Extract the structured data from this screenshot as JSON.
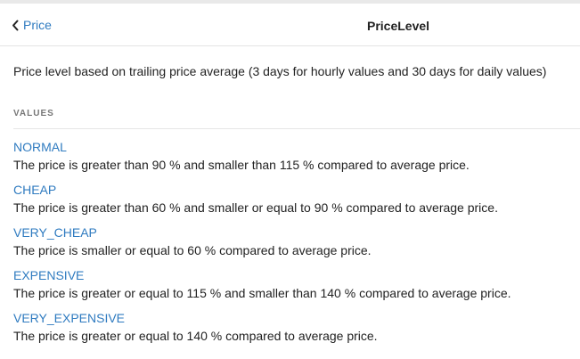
{
  "header": {
    "back_label": "Price",
    "title": "PriceLevel"
  },
  "description": "Price level based on trailing price average (3 days for hourly values and 30 days for daily values)",
  "values_section": {
    "label": "VALUES",
    "items": [
      {
        "name": "NORMAL",
        "description": "The price is greater than 90 % and smaller than 115 % compared to average price."
      },
      {
        "name": "CHEAP",
        "description": "The price is greater than 60 % and smaller or equal to 90 % compared to average price."
      },
      {
        "name": "VERY_CHEAP",
        "description": "The price is smaller or equal to 60 % compared to average price."
      },
      {
        "name": "EXPENSIVE",
        "description": "The price is greater or equal to 115 % and smaller than 140 % compared to average price."
      },
      {
        "name": "VERY_EXPENSIVE",
        "description": "The price is greater or equal to 140 % compared to average price."
      }
    ]
  },
  "colors": {
    "link": "#2f7bc0",
    "text": "#222222",
    "label": "#777777"
  },
  "icons": {
    "back": "chevron-left-icon"
  }
}
